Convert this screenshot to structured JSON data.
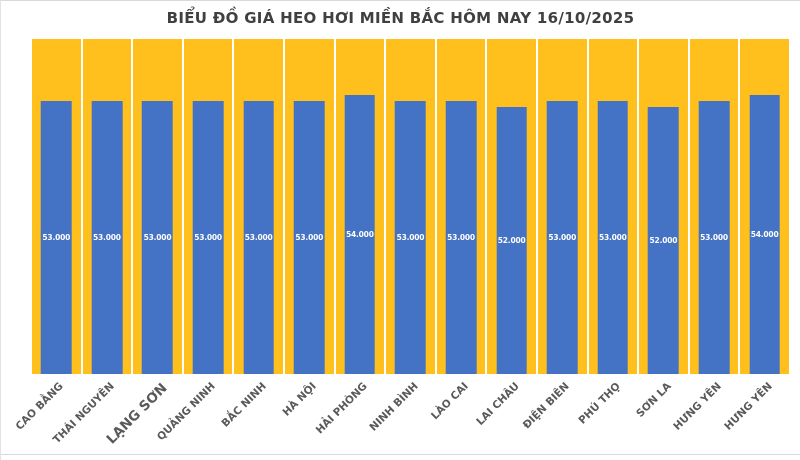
{
  "chart_data": {
    "type": "bar",
    "title": "BIỂU ĐỒ GIÁ HEO HƠI MIỀN BẮC HÔM NAY 16/10/2025",
    "categories": [
      "CAO BẰNG",
      "THÁI NGUYÊN",
      "LẠNG SƠN",
      "QUẢNG NINH",
      "BẮC NINH",
      "HÀ NỘI",
      "HẢI PHÒNG",
      "NINH BÌNH",
      "LÀO CAI",
      "LAI CHÂU",
      "ĐIỆN BIÊN",
      "PHÚ THỌ",
      "SƠN LA",
      "HƯNG YÊN",
      "HƯNG YÊN"
    ],
    "values": [
      53000,
      53000,
      53000,
      53000,
      53000,
      53000,
      54000,
      53000,
      53000,
      52000,
      53000,
      53000,
      52000,
      53000,
      54000
    ],
    "value_labels": [
      "53.000",
      "53.000",
      "53.000",
      "53.000",
      "53.000",
      "53.000",
      "54.000",
      "53.000",
      "53.000",
      "52.000",
      "53.000",
      "53.000",
      "52.000",
      "53.000",
      "54.000"
    ],
    "xlabel": "",
    "ylabel": "",
    "legend": null,
    "grid": "white vertical separators between category slots",
    "emphasized_category_index": 2,
    "colors": {
      "bar": "#4472C4",
      "plot_background": "#FFC01E",
      "bar_label": "#FFFFFF",
      "title": "#404040",
      "axis_label": "#595959",
      "divider": "#D9D9D9"
    }
  }
}
